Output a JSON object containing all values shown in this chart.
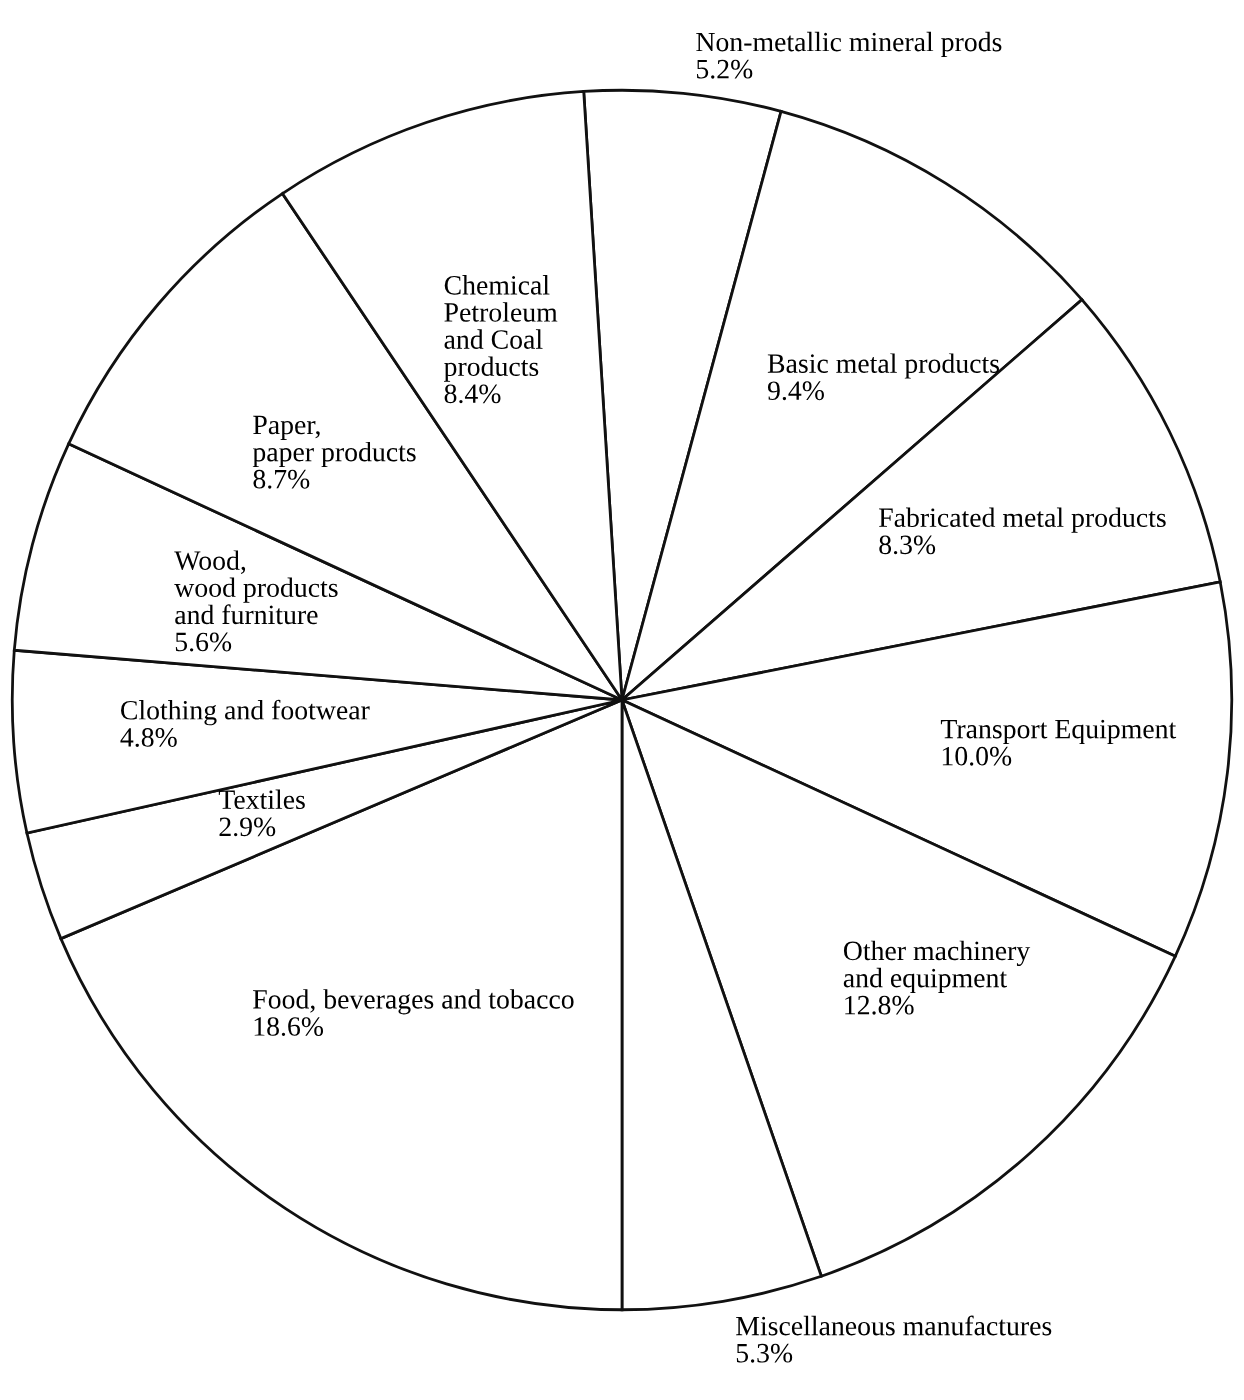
{
  "chart_data": {
    "type": "pie",
    "categories": [
      "Non-metallic mineral prods",
      "Basic metal products",
      "Fabricated metal products",
      "Transport Equipment",
      "Other machinery\nand equipment",
      "Miscellaneous manufactures",
      "Food, beverages and tobacco",
      "Textiles",
      "Clothing and footwear",
      "Wood,\nwood products\nand furniture",
      "Paper,\npaper products",
      "Chemical\nPetroleum\nand Coal\nproducts"
    ],
    "values": [
      5.2,
      9.4,
      8.3,
      10.0,
      12.8,
      5.3,
      18.6,
      2.9,
      4.8,
      5.6,
      8.7,
      8.4
    ],
    "colors": [
      "#ffffff",
      "#ffffff",
      "#ffffff",
      "#ffffff",
      "#ffffff",
      "#ffffff",
      "#ffffff",
      "#ffffff",
      "#ffffff",
      "#ffffff",
      "#ffffff",
      "#ffffff"
    ],
    "value_labels": [
      "5.2%",
      "9.4%",
      "8.3%",
      "10.0%",
      "12.8%",
      "5.3%",
      "18.6%",
      "2.9%",
      "4.8%",
      "5.6%",
      "8.7%",
      "8.4%"
    ]
  }
}
